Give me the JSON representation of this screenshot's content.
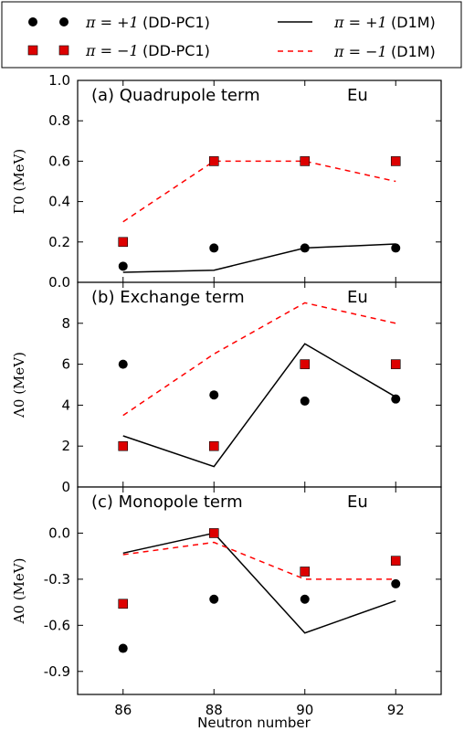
{
  "legend": {
    "entries": [
      {
        "math": "π = +1",
        "label": "(DD-PC1)",
        "marker": "circle",
        "color": "#000000"
      },
      {
        "math": "π = −1",
        "label": "(DD-PC1)",
        "marker": "square",
        "color": "#dd0000"
      },
      {
        "math": "π = +1",
        "label": "(D1M)",
        "line": "solid",
        "color": "#000000"
      },
      {
        "math": "π = −1",
        "label": "(D1M)",
        "line": "dashed",
        "color": "#ff0000"
      }
    ]
  },
  "colors": {
    "positive": "#000000",
    "negative_marker": "#dd0000",
    "negative_line": "#ff0000"
  },
  "chart_data": [
    {
      "type": "line",
      "title": "(a) Quadrupole term",
      "element": "Eu",
      "ylabel": "Γ0 (MeV)",
      "ylim": [
        0.0,
        1.0
      ],
      "yticks": [
        0.0,
        0.2,
        0.4,
        0.6,
        0.8,
        1.0
      ],
      "ytick_labels": [
        "0.0",
        "0.2",
        "0.4",
        "0.6",
        "0.8",
        "1.0"
      ],
      "x": [
        86,
        88,
        90,
        92
      ],
      "series": [
        {
          "name": "π = +1 (DD-PC1)",
          "style": "circle",
          "values": [
            0.08,
            0.17,
            0.17,
            0.17
          ]
        },
        {
          "name": "π = −1 (DD-PC1)",
          "style": "square",
          "values": [
            0.2,
            0.6,
            0.6,
            0.6
          ]
        },
        {
          "name": "π = +1 (D1M)",
          "style": "solid",
          "values": [
            0.05,
            0.06,
            0.17,
            0.19
          ]
        },
        {
          "name": "π = −1 (D1M)",
          "style": "dashed",
          "values": [
            0.3,
            0.6,
            0.6,
            0.5
          ]
        }
      ]
    },
    {
      "type": "line",
      "title": "(b) Exchange term",
      "element": "Eu",
      "ylabel": "Λ0 (MeV)",
      "ylim": [
        0,
        10
      ],
      "yticks": [
        0,
        2,
        4,
        6,
        8
      ],
      "ytick_labels": [
        "0",
        "2",
        "4",
        "6",
        "8"
      ],
      "x": [
        86,
        88,
        90,
        92
      ],
      "series": [
        {
          "name": "π = +1 (DD-PC1)",
          "style": "circle",
          "values": [
            6.0,
            4.5,
            4.2,
            4.3
          ]
        },
        {
          "name": "π = −1 (DD-PC1)",
          "style": "square",
          "values": [
            2.0,
            2.0,
            6.0,
            6.0
          ]
        },
        {
          "name": "π = +1 (D1M)",
          "style": "solid",
          "values": [
            2.5,
            1.0,
            7.0,
            4.4
          ]
        },
        {
          "name": "π = −1 (D1M)",
          "style": "dashed",
          "values": [
            3.5,
            6.5,
            9.0,
            8.0
          ]
        }
      ]
    },
    {
      "type": "line",
      "title": "(c) Monopole term",
      "element": "Eu",
      "ylabel": "A0 (MeV)",
      "xlabel": "Neutron number",
      "ylim": [
        -1.05,
        0.3
      ],
      "yticks": [
        -0.9,
        -0.6,
        -0.3,
        0.0
      ],
      "ytick_labels": [
        "-0.9",
        "-0.6",
        "-0.3",
        "0.0"
      ],
      "x": [
        86,
        88,
        90,
        92
      ],
      "xlim": [
        85,
        93
      ],
      "xticks": [
        86,
        88,
        90,
        92
      ],
      "series": [
        {
          "name": "π = +1 (DD-PC1)",
          "style": "circle",
          "values": [
            -0.75,
            -0.43,
            -0.43,
            -0.33
          ]
        },
        {
          "name": "π = −1 (DD-PC1)",
          "style": "square",
          "values": [
            -0.46,
            0.0,
            -0.25,
            -0.18
          ]
        },
        {
          "name": "π = +1 (D1M)",
          "style": "solid",
          "values": [
            -0.13,
            0.0,
            -0.65,
            -0.44
          ]
        },
        {
          "name": "π = −1 (D1M)",
          "style": "dashed",
          "values": [
            -0.14,
            -0.06,
            -0.3,
            -0.3
          ]
        }
      ]
    }
  ]
}
